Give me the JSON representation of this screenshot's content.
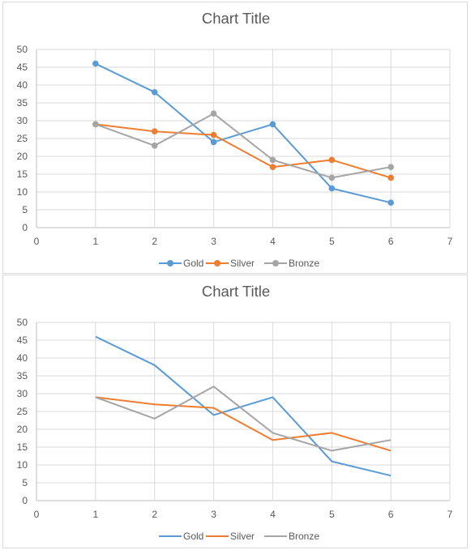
{
  "chart_data": [
    {
      "type": "scatter",
      "title": "Chart Title",
      "markers": true,
      "xlim": [
        0,
        7
      ],
      "ylim": [
        0,
        50
      ],
      "xticks": [
        0,
        1,
        2,
        3,
        4,
        5,
        6,
        7
      ],
      "yticks": [
        0,
        5,
        10,
        15,
        20,
        25,
        30,
        35,
        40,
        45,
        50
      ],
      "grid": true,
      "legend_position": "bottom",
      "x": [
        1,
        2,
        3,
        4,
        5,
        6
      ],
      "series": [
        {
          "name": "Gold",
          "color": "#5b9bd5",
          "values": [
            46,
            38,
            24,
            29,
            11,
            7
          ]
        },
        {
          "name": "Silver",
          "color": "#ed7d31",
          "values": [
            29,
            27,
            26,
            17,
            19,
            14
          ]
        },
        {
          "name": "Bronze",
          "color": "#a5a5a5",
          "values": [
            29,
            23,
            32,
            19,
            14,
            17
          ]
        }
      ]
    },
    {
      "type": "line",
      "title": "Chart Title",
      "markers": false,
      "xlim": [
        0,
        7
      ],
      "ylim": [
        0,
        50
      ],
      "xticks": [
        0,
        1,
        2,
        3,
        4,
        5,
        6,
        7
      ],
      "yticks": [
        0,
        5,
        10,
        15,
        20,
        25,
        30,
        35,
        40,
        45,
        50
      ],
      "grid": true,
      "legend_position": "bottom",
      "x": [
        1,
        2,
        3,
        4,
        5,
        6
      ],
      "series": [
        {
          "name": "Gold",
          "color": "#5b9bd5",
          "values": [
            46,
            38,
            24,
            29,
            11,
            7
          ]
        },
        {
          "name": "Silver",
          "color": "#ed7d31",
          "values": [
            29,
            27,
            26,
            17,
            19,
            14
          ]
        },
        {
          "name": "Bronze",
          "color": "#a5a5a5",
          "values": [
            29,
            23,
            32,
            19,
            14,
            17
          ]
        }
      ]
    }
  ]
}
